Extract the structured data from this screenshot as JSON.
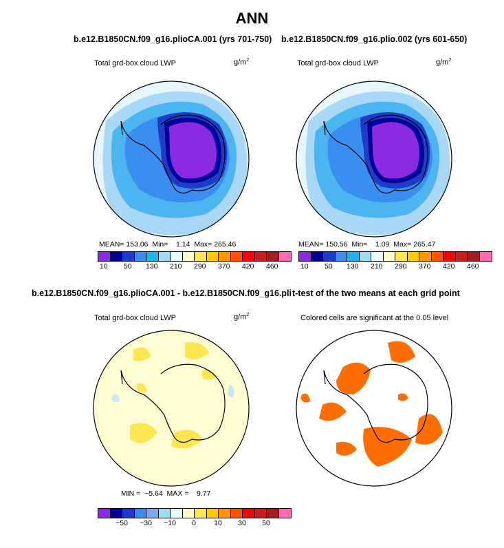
{
  "title": "ANN",
  "panels": [
    {
      "id": "p1",
      "title": "b.e12.B1850CN.f09_g16.plioCA.001 (yrs 701-750)",
      "variable": "Total grd-box cloud LWP",
      "unit": "g/m",
      "unit_sup": "2",
      "stats": "MEAN= 153.06  Min=    1.14  Max= 265.46",
      "colorbar_colors": [
        "#8a2be2",
        "#000096",
        "#1e3cc8",
        "#3c8cf0",
        "#1eb4f0",
        "#a0dcf0",
        "#e6ffff",
        "#fffac8",
        "#ffe650",
        "#ffc800",
        "#ff9600",
        "#ff5000",
        "#ff0000",
        "#c81e1e",
        "#a01e1e",
        "#ff69b4"
      ],
      "colorbar_ticks": [
        "10",
        "50",
        "130",
        "210",
        "290",
        "370",
        "420",
        "460"
      ]
    },
    {
      "id": "p2",
      "title": "b.e12.B1850CN.f09_g16.plio.002 (yrs 601-650)",
      "variable": "Total grd-box cloud LWP",
      "unit": "g/m",
      "unit_sup": "2",
      "stats": "MEAN= 150.56  Min=    1.09  Max= 265.47",
      "colorbar_colors": [
        "#8a2be2",
        "#000096",
        "#1e3cc8",
        "#3c8cf0",
        "#1eb4f0",
        "#a0dcf0",
        "#e6ffff",
        "#fffac8",
        "#ffe650",
        "#ffc800",
        "#ff9600",
        "#ff5000",
        "#ff0000",
        "#c81e1e",
        "#a01e1e",
        "#ff69b4"
      ],
      "colorbar_ticks": [
        "10",
        "50",
        "130",
        "210",
        "290",
        "370",
        "420",
        "460"
      ]
    },
    {
      "id": "p3",
      "title": "b.e12.B1850CN.f09_g16.plioCA.001 - b.e12.B1850CN.f09_g16.plio.002",
      "variable": "Total grd-box cloud LWP",
      "unit": "g/m",
      "unit_sup": "2",
      "stats": "MIN =  −5.64  MAX =    9.77",
      "colorbar_colors": [
        "#8a2be2",
        "#000096",
        "#1e3cc8",
        "#3c8cf0",
        "#78aaf0",
        "#a0dcf0",
        "#e6ffff",
        "#fffac8",
        "#ffe650",
        "#ffc800",
        "#ff9600",
        "#ff5000",
        "#ff0000",
        "#c81e1e",
        "#a01e1e",
        "#ff69b4"
      ],
      "colorbar_ticks": [
        "−50",
        "−30",
        "−10",
        "0",
        "10",
        "30",
        "50"
      ]
    },
    {
      "id": "p4",
      "title": "t-test of the two means at each grid point",
      "subtitle": "Colored cells are significant at the 0.05 level",
      "significance_color": "#ff6e00"
    }
  ]
}
